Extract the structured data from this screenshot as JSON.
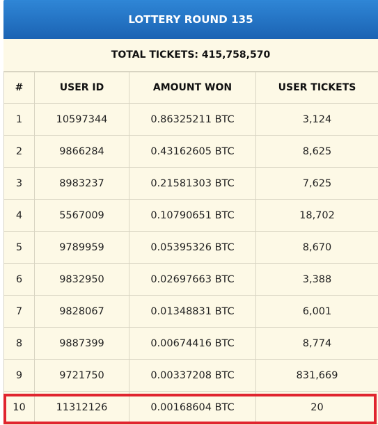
{
  "header": {
    "title": "LOTTERY ROUND 135",
    "total_tickets": "TOTAL TICKETS: 415,758,570"
  },
  "table": {
    "columns": [
      "#",
      "USER ID",
      "AMOUNT WON",
      "USER TICKETS"
    ],
    "rows": [
      {
        "rank": "1",
        "user_id": "10597344",
        "amount": "0.86325211 BTC",
        "tickets": "3,124"
      },
      {
        "rank": "2",
        "user_id": "9866284",
        "amount": "0.43162605 BTC",
        "tickets": "8,625"
      },
      {
        "rank": "3",
        "user_id": "8983237",
        "amount": "0.21581303 BTC",
        "tickets": "7,625"
      },
      {
        "rank": "4",
        "user_id": "5567009",
        "amount": "0.10790651 BTC",
        "tickets": "18,702"
      },
      {
        "rank": "5",
        "user_id": "9789959",
        "amount": "0.05395326 BTC",
        "tickets": "8,670"
      },
      {
        "rank": "6",
        "user_id": "9832950",
        "amount": "0.02697663 BTC",
        "tickets": "3,388"
      },
      {
        "rank": "7",
        "user_id": "9828067",
        "amount": "0.01348831 BTC",
        "tickets": "6,001"
      },
      {
        "rank": "8",
        "user_id": "9887399",
        "amount": "0.00674416 BTC",
        "tickets": "8,774"
      },
      {
        "rank": "9",
        "user_id": "9721750",
        "amount": "0.00337208 BTC",
        "tickets": "831,669"
      },
      {
        "rank": "10",
        "user_id": "11312126",
        "amount": "0.00168604 BTC",
        "tickets": "20"
      }
    ]
  },
  "colors": {
    "banner": "#1b63b3",
    "background": "#fdf9e6",
    "highlight_border": "#e0242e"
  }
}
